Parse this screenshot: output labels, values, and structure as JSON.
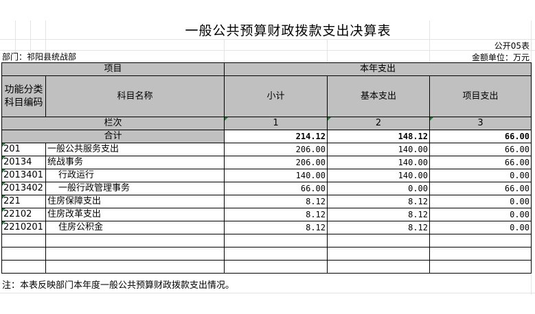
{
  "title": "一般公共预算财政拨款支出决算表",
  "form_no": "公开05表",
  "department": "部门：祁阳县统战部",
  "unit": "金额单位：万元",
  "header": {
    "project": "项目",
    "current_year": "本年支出",
    "code_col": "功能分类科目编码",
    "name_col": "科目名称",
    "subtotal": "小计",
    "basic": "基本支出",
    "project_exp": "项目支出",
    "col_index": "栏次",
    "idx1": "1",
    "idx2": "2",
    "idx3": "3"
  },
  "total": {
    "label": "合计",
    "subtotal": "214.12",
    "basic": "148.12",
    "project": "66.00"
  },
  "rows": [
    {
      "code": "201",
      "name": "一般公共服务支出",
      "subtotal": "206.00",
      "basic": "140.00",
      "project": "66.00",
      "indent": false
    },
    {
      "code": "20134",
      "name": "统战事务",
      "subtotal": "206.00",
      "basic": "140.00",
      "project": "66.00",
      "indent": false
    },
    {
      "code": "2013401",
      "name": "行政运行",
      "subtotal": "140.00",
      "basic": "140.00",
      "project": "0.00",
      "indent": true
    },
    {
      "code": "2013402",
      "name": "一般行政管理事务",
      "subtotal": "66.00",
      "basic": "0.00",
      "project": "66.00",
      "indent": true
    },
    {
      "code": "221",
      "name": "住房保障支出",
      "subtotal": "8.12",
      "basic": "8.12",
      "project": "0.00",
      "indent": false
    },
    {
      "code": "22102",
      "name": "住房改革支出",
      "subtotal": "8.12",
      "basic": "8.12",
      "project": "0.00",
      "indent": false
    },
    {
      "code": "2210201",
      "name": "住房公积金",
      "subtotal": "8.12",
      "basic": "8.12",
      "project": "0.00",
      "indent": true
    }
  ],
  "note": "注：本表反映部门本年度一般公共预算财政拨款支出情况。"
}
